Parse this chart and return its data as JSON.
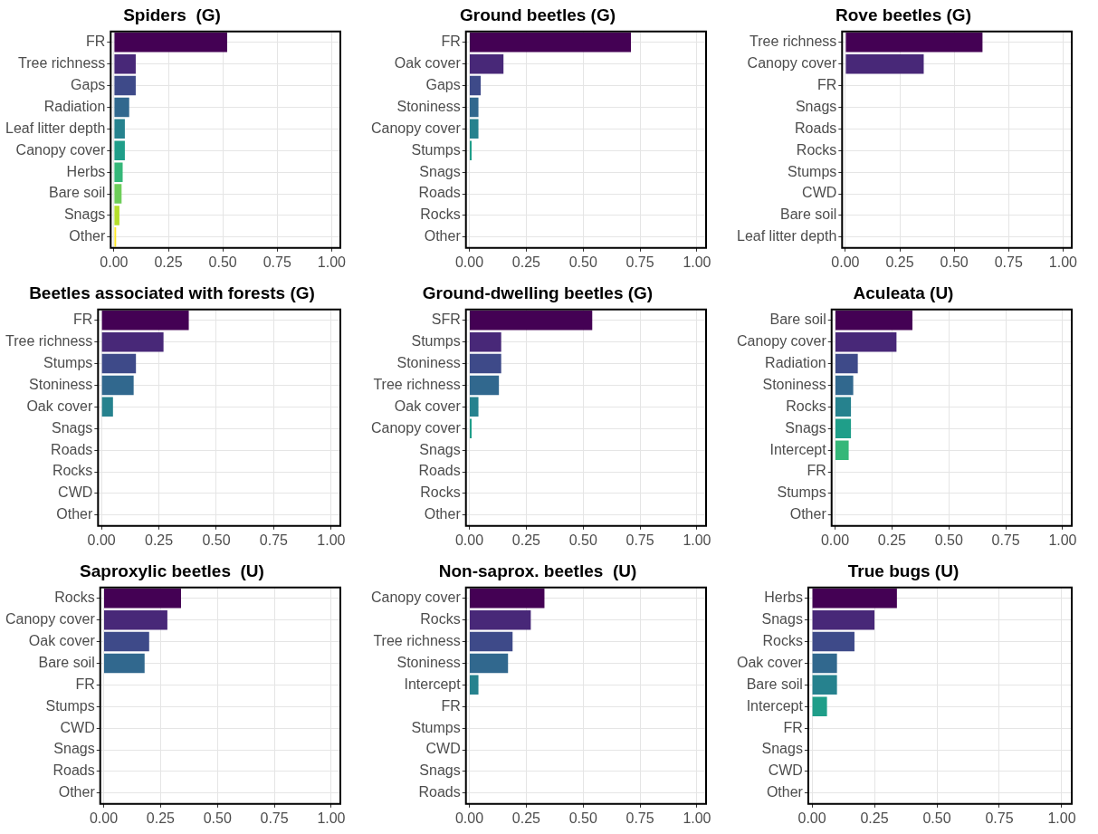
{
  "chart_data": [
    {
      "type": "bar",
      "orientation": "horizontal",
      "title": "Spiders  (G)",
      "categories": [
        "FR",
        "Tree richness",
        "Gaps",
        "Radiation",
        "Leaf litter depth",
        "Canopy cover",
        "Herbs",
        "Bare soil",
        "Snags",
        "Other"
      ],
      "values": [
        0.52,
        0.1,
        0.1,
        0.07,
        0.05,
        0.05,
        0.04,
        0.035,
        0.025,
        0.01
      ],
      "colors": [
        "#440154",
        "#482878",
        "#3e4a89",
        "#31688e",
        "#26828e",
        "#1f9e89",
        "#35b779",
        "#6dcd59",
        "#b4de2c",
        "#fde725"
      ],
      "xlim": [
        -0.015,
        1.04
      ],
      "xticks": [
        {
          "value": 0,
          "label": "0.00"
        },
        {
          "value": 0.25,
          "label": "0.25"
        },
        {
          "value": 0.5,
          "label": "0.50"
        },
        {
          "value": 0.75,
          "label": "0.75"
        },
        {
          "value": 1,
          "label": "1.00"
        }
      ],
      "grid": true
    },
    {
      "type": "bar",
      "orientation": "horizontal",
      "title": "Ground beetles (G)",
      "categories": [
        "FR",
        "Oak cover",
        "Gaps",
        "Stoniness",
        "Canopy cover",
        "Stumps",
        "Snags",
        "Roads",
        "Rocks",
        "Other"
      ],
      "values": [
        0.71,
        0.15,
        0.05,
        0.04,
        0.04,
        0.01,
        0,
        0,
        0,
        0
      ],
      "colors": [
        "#440154",
        "#482878",
        "#3e4a89",
        "#31688e",
        "#26828e",
        "#1f9e89",
        "#35b779",
        "#6dcd59",
        "#b4de2c",
        "#fde725"
      ],
      "xlim": [
        -0.015,
        1.04
      ],
      "xticks": [
        {
          "value": 0,
          "label": "0.00"
        },
        {
          "value": 0.25,
          "label": "0.25"
        },
        {
          "value": 0.5,
          "label": "0.50"
        },
        {
          "value": 0.75,
          "label": "0.75"
        },
        {
          "value": 1,
          "label": "1.00"
        }
      ],
      "grid": true
    },
    {
      "type": "bar",
      "orientation": "horizontal",
      "title": "Rove beetles (G)",
      "categories": [
        "Tree richness",
        "Canopy cover",
        "FR",
        "Snags",
        "Roads",
        "Rocks",
        "Stumps",
        "CWD",
        "Bare soil",
        "Leaf litter depth"
      ],
      "values": [
        0.63,
        0.36,
        0,
        0,
        0,
        0,
        0,
        0,
        0,
        0
      ],
      "colors": [
        "#440154",
        "#482878",
        "#3e4a89",
        "#31688e",
        "#26828e",
        "#1f9e89",
        "#35b779",
        "#6dcd59",
        "#b4de2c",
        "#fde725"
      ],
      "xlim": [
        -0.015,
        1.04
      ],
      "xticks": [
        {
          "value": 0,
          "label": "0.00"
        },
        {
          "value": 0.25,
          "label": "0.25"
        },
        {
          "value": 0.5,
          "label": "0.50"
        },
        {
          "value": 0.75,
          "label": "0.75"
        },
        {
          "value": 1,
          "label": "1.00"
        }
      ],
      "grid": true
    },
    {
      "type": "bar",
      "orientation": "horizontal",
      "title": "Beetles associated with forests (G)",
      "categories": [
        "FR",
        "Tree richness",
        "Stumps",
        "Stoniness",
        "Oak cover",
        "Snags",
        "Roads",
        "Rocks",
        "CWD",
        "Other"
      ],
      "values": [
        0.38,
        0.27,
        0.15,
        0.14,
        0.05,
        0,
        0,
        0,
        0,
        0
      ],
      "colors": [
        "#440154",
        "#482878",
        "#3e4a89",
        "#31688e",
        "#26828e",
        "#1f9e89",
        "#35b779",
        "#6dcd59",
        "#b4de2c",
        "#fde725"
      ],
      "xlim": [
        -0.015,
        1.04
      ],
      "xticks": [
        {
          "value": 0,
          "label": "0.00"
        },
        {
          "value": 0.25,
          "label": "0.25"
        },
        {
          "value": 0.5,
          "label": "0.50"
        },
        {
          "value": 0.75,
          "label": "0.75"
        },
        {
          "value": 1,
          "label": "1.00"
        }
      ],
      "grid": true
    },
    {
      "type": "bar",
      "orientation": "horizontal",
      "title": "Ground-dwelling beetles (G)",
      "categories": [
        "SFR",
        "Stumps",
        "Stoniness",
        "Tree richness",
        "Oak cover",
        "Canopy cover",
        "Snags",
        "Roads",
        "Rocks",
        "Other"
      ],
      "values": [
        0.54,
        0.14,
        0.14,
        0.13,
        0.04,
        0.01,
        0,
        0,
        0,
        0
      ],
      "colors": [
        "#440154",
        "#482878",
        "#3e4a89",
        "#31688e",
        "#26828e",
        "#1f9e89",
        "#35b779",
        "#6dcd59",
        "#b4de2c",
        "#fde725"
      ],
      "xlim": [
        -0.015,
        1.04
      ],
      "xticks": [
        {
          "value": 0,
          "label": "0.00"
        },
        {
          "value": 0.25,
          "label": "0.25"
        },
        {
          "value": 0.5,
          "label": "0.50"
        },
        {
          "value": 0.75,
          "label": "0.75"
        },
        {
          "value": 1,
          "label": "1.00"
        }
      ],
      "grid": true
    },
    {
      "type": "bar",
      "orientation": "horizontal",
      "title": "Aculeata (U)",
      "categories": [
        "Bare soil",
        "Canopy cover",
        "Radiation",
        "Stoniness",
        "Rocks",
        "Snags",
        "Intercept",
        "FR",
        "Stumps",
        "Other"
      ],
      "values": [
        0.34,
        0.27,
        0.1,
        0.08,
        0.07,
        0.07,
        0.06,
        0,
        0,
        0
      ],
      "colors": [
        "#440154",
        "#482878",
        "#3e4a89",
        "#31688e",
        "#26828e",
        "#1f9e89",
        "#35b779",
        "#6dcd59",
        "#b4de2c",
        "#fde725"
      ],
      "xlim": [
        -0.015,
        1.04
      ],
      "xticks": [
        {
          "value": 0,
          "label": "0.00"
        },
        {
          "value": 0.25,
          "label": "0.25"
        },
        {
          "value": 0.5,
          "label": "0.50"
        },
        {
          "value": 0.75,
          "label": "0.75"
        },
        {
          "value": 1,
          "label": "1.00"
        }
      ],
      "grid": true
    },
    {
      "type": "bar",
      "orientation": "horizontal",
      "title": "Saproxylic beetles  (U)",
      "categories": [
        "Rocks",
        "Canopy cover",
        "Oak cover",
        "Bare soil",
        "FR",
        "Stumps",
        "CWD",
        "Snags",
        "Roads",
        "Other"
      ],
      "values": [
        0.34,
        0.28,
        0.2,
        0.18,
        0,
        0,
        0,
        0,
        0,
        0
      ],
      "colors": [
        "#440154",
        "#482878",
        "#3e4a89",
        "#31688e",
        "#26828e",
        "#1f9e89",
        "#35b779",
        "#6dcd59",
        "#b4de2c",
        "#fde725"
      ],
      "xlim": [
        -0.015,
        1.04
      ],
      "xticks": [
        {
          "value": 0,
          "label": "0.00"
        },
        {
          "value": 0.25,
          "label": "0.25"
        },
        {
          "value": 0.5,
          "label": "0.50"
        },
        {
          "value": 0.75,
          "label": "0.75"
        },
        {
          "value": 1,
          "label": "1.00"
        }
      ],
      "grid": true
    },
    {
      "type": "bar",
      "orientation": "horizontal",
      "title": "Non-saprox. beetles  (U)",
      "categories": [
        "Canopy cover",
        "Rocks",
        "Tree richness",
        "Stoniness",
        "Intercept",
        "FR",
        "Stumps",
        "CWD",
        "Snags",
        "Roads"
      ],
      "values": [
        0.33,
        0.27,
        0.19,
        0.17,
        0.04,
        0,
        0,
        0,
        0,
        0
      ],
      "colors": [
        "#440154",
        "#482878",
        "#3e4a89",
        "#31688e",
        "#26828e",
        "#1f9e89",
        "#35b779",
        "#6dcd59",
        "#b4de2c",
        "#fde725"
      ],
      "xlim": [
        -0.015,
        1.04
      ],
      "xticks": [
        {
          "value": 0,
          "label": "0.00"
        },
        {
          "value": 0.25,
          "label": "0.25"
        },
        {
          "value": 0.5,
          "label": "0.50"
        },
        {
          "value": 0.75,
          "label": "0.75"
        },
        {
          "value": 1,
          "label": "1.00"
        }
      ],
      "grid": true
    },
    {
      "type": "bar",
      "orientation": "horizontal",
      "title": "True bugs (U)",
      "categories": [
        "Herbs",
        "Snags",
        "Rocks",
        "Oak cover",
        "Bare soil",
        "Intercept",
        "FR",
        "Snags",
        "CWD",
        "Other"
      ],
      "values": [
        0.34,
        0.25,
        0.17,
        0.1,
        0.1,
        0.06,
        0,
        0,
        0,
        0
      ],
      "colors": [
        "#440154",
        "#482878",
        "#3e4a89",
        "#31688e",
        "#26828e",
        "#1f9e89",
        "#35b779",
        "#6dcd59",
        "#b4de2c",
        "#fde725"
      ],
      "xlim": [
        -0.015,
        1.04
      ],
      "xticks": [
        {
          "value": 0,
          "label": "0.00"
        },
        {
          "value": 0.25,
          "label": "0.25"
        },
        {
          "value": 0.5,
          "label": "0.50"
        },
        {
          "value": 0.75,
          "label": "0.75"
        },
        {
          "value": 1,
          "label": "1.00"
        }
      ],
      "grid": true
    }
  ]
}
